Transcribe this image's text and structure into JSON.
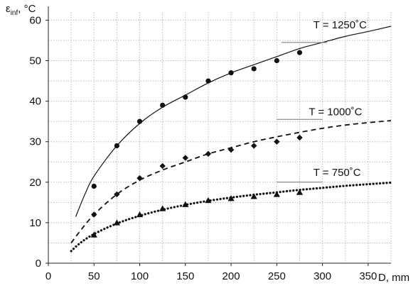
{
  "chart_data": {
    "type": "scatter",
    "ylabel": {
      "symbol": "ε",
      "subscript": "inf",
      "unit": ", °C"
    },
    "xlabel": "D, mm",
    "xlim": [
      0,
      375
    ],
    "ylim": [
      0,
      62
    ],
    "xticks": [
      "0",
      "50",
      "100",
      "150",
      "200",
      "250",
      "300",
      "350"
    ],
    "yticks": [
      "0",
      "10",
      "20",
      "30",
      "40",
      "50",
      "60"
    ],
    "grid": true,
    "series": [
      {
        "name": "T = 1250˚C",
        "marker": "circle",
        "line_style": "solid",
        "points": [
          {
            "x": 50,
            "y": 19
          },
          {
            "x": 75,
            "y": 29
          },
          {
            "x": 100,
            "y": 35
          },
          {
            "x": 125,
            "y": 39
          },
          {
            "x": 150,
            "y": 41
          },
          {
            "x": 175,
            "y": 45
          },
          {
            "x": 200,
            "y": 47
          },
          {
            "x": 225,
            "y": 48
          },
          {
            "x": 250,
            "y": 50
          },
          {
            "x": 275,
            "y": 52
          }
        ],
        "fit": [
          {
            "x": 30,
            "y": 11.5
          },
          {
            "x": 40,
            "y": 17
          },
          {
            "x": 50,
            "y": 21.5
          },
          {
            "x": 75,
            "y": 29
          },
          {
            "x": 100,
            "y": 34.5
          },
          {
            "x": 125,
            "y": 38.5
          },
          {
            "x": 150,
            "y": 41.5
          },
          {
            "x": 175,
            "y": 44.5
          },
          {
            "x": 200,
            "y": 47
          },
          {
            "x": 225,
            "y": 49
          },
          {
            "x": 250,
            "y": 51
          },
          {
            "x": 275,
            "y": 53
          },
          {
            "x": 300,
            "y": 54.5
          },
          {
            "x": 325,
            "y": 56
          },
          {
            "x": 350,
            "y": 57.2
          },
          {
            "x": 375,
            "y": 58.5
          }
        ]
      },
      {
        "name": "T = 1000˚C",
        "marker": "diamond",
        "line_style": "dashed",
        "points": [
          {
            "x": 50,
            "y": 12
          },
          {
            "x": 75,
            "y": 17
          },
          {
            "x": 100,
            "y": 21
          },
          {
            "x": 125,
            "y": 24
          },
          {
            "x": 150,
            "y": 26
          },
          {
            "x": 175,
            "y": 27
          },
          {
            "x": 200,
            "y": 28
          },
          {
            "x": 225,
            "y": 29
          },
          {
            "x": 250,
            "y": 30
          },
          {
            "x": 275,
            "y": 31
          }
        ],
        "fit": [
          {
            "x": 25,
            "y": 5
          },
          {
            "x": 35,
            "y": 8
          },
          {
            "x": 50,
            "y": 12
          },
          {
            "x": 75,
            "y": 17
          },
          {
            "x": 100,
            "y": 20.5
          },
          {
            "x": 125,
            "y": 23
          },
          {
            "x": 150,
            "y": 25
          },
          {
            "x": 175,
            "y": 27
          },
          {
            "x": 200,
            "y": 28.5
          },
          {
            "x": 225,
            "y": 30
          },
          {
            "x": 250,
            "y": 31.2
          },
          {
            "x": 275,
            "y": 32.3
          },
          {
            "x": 300,
            "y": 33.3
          },
          {
            "x": 325,
            "y": 34.1
          },
          {
            "x": 350,
            "y": 34.7
          },
          {
            "x": 375,
            "y": 35.2
          }
        ]
      },
      {
        "name": "T = 750˚C",
        "marker": "triangle",
        "line_style": "dotted",
        "points": [
          {
            "x": 50,
            "y": 7
          },
          {
            "x": 75,
            "y": 10
          },
          {
            "x": 100,
            "y": 12
          },
          {
            "x": 125,
            "y": 13.5
          },
          {
            "x": 150,
            "y": 14.5
          },
          {
            "x": 175,
            "y": 15.5
          },
          {
            "x": 200,
            "y": 16
          },
          {
            "x": 225,
            "y": 16.5
          },
          {
            "x": 250,
            "y": 17
          },
          {
            "x": 275,
            "y": 17.5
          }
        ],
        "fit": [
          {
            "x": 25,
            "y": 3
          },
          {
            "x": 35,
            "y": 5
          },
          {
            "x": 50,
            "y": 7.2
          },
          {
            "x": 75,
            "y": 9.8
          },
          {
            "x": 100,
            "y": 11.7
          },
          {
            "x": 125,
            "y": 13.2
          },
          {
            "x": 150,
            "y": 14.4
          },
          {
            "x": 175,
            "y": 15.4
          },
          {
            "x": 200,
            "y": 16.2
          },
          {
            "x": 225,
            "y": 16.9
          },
          {
            "x": 250,
            "y": 17.5
          },
          {
            "x": 275,
            "y": 18.1
          },
          {
            "x": 300,
            "y": 18.6
          },
          {
            "x": 325,
            "y": 19.1
          },
          {
            "x": 350,
            "y": 19.5
          },
          {
            "x": 375,
            "y": 19.9
          }
        ]
      }
    ],
    "annotations": [
      {
        "series": 0,
        "text": "T = 1250˚C",
        "callout_from": {
          "x": 255,
          "y": 54.5
        },
        "callout_to": {
          "x": 305,
          "y": 54.5
        },
        "text_at": {
          "x": 290,
          "y": 58
        }
      },
      {
        "series": 1,
        "text": "T = 1000˚C",
        "callout_from": {
          "x": 250,
          "y": 35.5
        },
        "callout_to": {
          "x": 300,
          "y": 35.5
        },
        "text_at": {
          "x": 285,
          "y": 36.5
        }
      },
      {
        "series": 2,
        "text": "T = 750˚C",
        "callout_from": {
          "x": 250,
          "y": 20
        },
        "callout_to": {
          "x": 300,
          "y": 20
        },
        "text_at": {
          "x": 290,
          "y": 21.5
        }
      }
    ]
  }
}
